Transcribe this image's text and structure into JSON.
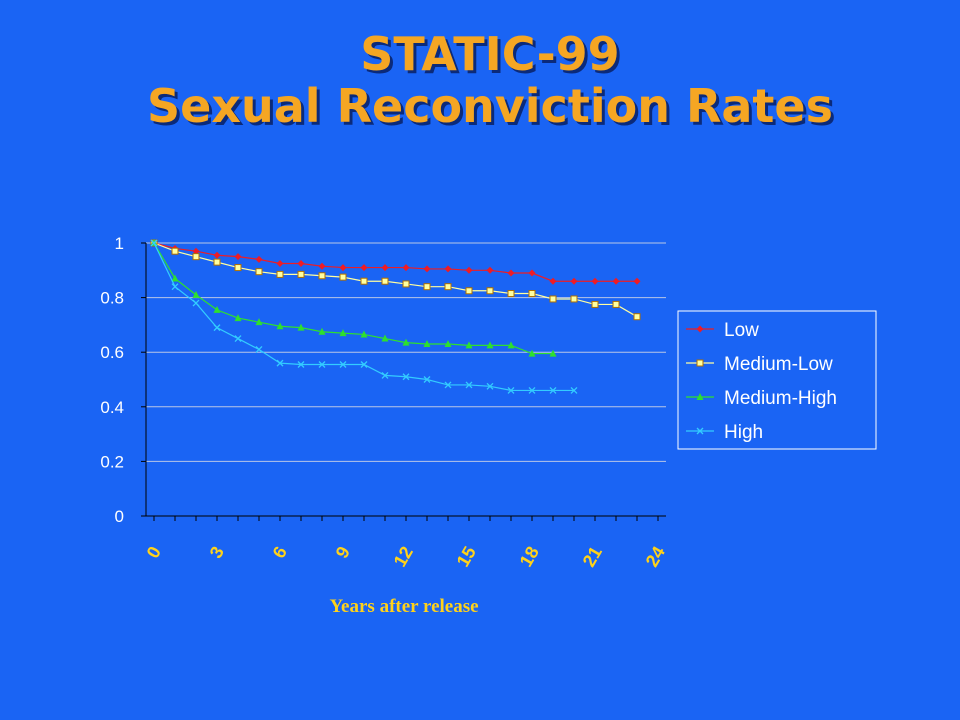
{
  "title": {
    "line1": "STATIC-99",
    "line2": "Sexual Reconviction Rates"
  },
  "colors": {
    "background": "#1a64f4",
    "title": "#f5a623",
    "axis_text": "#ffffff",
    "x_tick_text": "#ffd21a",
    "gridline": "#b9c7e6",
    "legend_border": "#ffffff"
  },
  "chart_data": {
    "type": "line",
    "title": "",
    "xlabel": "Years after release",
    "ylabel": "",
    "xlim": [
      0,
      24
    ],
    "ylim": [
      0,
      1
    ],
    "x_ticks": [
      "0",
      "3",
      "6",
      "9",
      "12",
      "15",
      "18",
      "21",
      "24"
    ],
    "y_ticks": [
      "0",
      "0.2",
      "0.4",
      "0.6",
      "0.8",
      "1"
    ],
    "grid": true,
    "legend_position": "right",
    "series": [
      {
        "name": "Low",
        "color": "#ee1c25",
        "marker": "diamond",
        "x": [
          0,
          1,
          2,
          3,
          4,
          5,
          6,
          7,
          8,
          9,
          10,
          11,
          12,
          13,
          14,
          15,
          16,
          17,
          18,
          19,
          20,
          21,
          22,
          23
        ],
        "y": [
          1,
          0.98,
          0.97,
          0.955,
          0.95,
          0.94,
          0.925,
          0.925,
          0.915,
          0.91,
          0.91,
          0.91,
          0.91,
          0.905,
          0.905,
          0.9,
          0.9,
          0.89,
          0.89,
          0.86,
          0.86,
          0.86,
          0.86,
          0.86
        ]
      },
      {
        "name": "Medium-Low",
        "color": "#ffffa0",
        "marker": "square",
        "x": [
          0,
          1,
          2,
          3,
          4,
          5,
          6,
          7,
          8,
          9,
          10,
          11,
          12,
          13,
          14,
          15,
          16,
          17,
          18,
          19,
          20,
          21,
          22,
          23
        ],
        "y": [
          1,
          0.97,
          0.95,
          0.93,
          0.91,
          0.895,
          0.885,
          0.885,
          0.88,
          0.875,
          0.86,
          0.86,
          0.85,
          0.84,
          0.84,
          0.825,
          0.825,
          0.815,
          0.815,
          0.795,
          0.795,
          0.775,
          0.775,
          0.73
        ]
      },
      {
        "name": "Medium-High",
        "color": "#2ee02e",
        "marker": "triangle",
        "x": [
          0,
          1,
          2,
          3,
          4,
          5,
          6,
          7,
          8,
          9,
          10,
          11,
          12,
          13,
          14,
          15,
          16,
          17,
          18,
          19
        ],
        "y": [
          1,
          0.87,
          0.81,
          0.755,
          0.725,
          0.71,
          0.695,
          0.69,
          0.675,
          0.67,
          0.665,
          0.65,
          0.635,
          0.63,
          0.63,
          0.625,
          0.625,
          0.625,
          0.595,
          0.595
        ]
      },
      {
        "name": "High",
        "color": "#33ccff",
        "marker": "x",
        "x": [
          0,
          1,
          2,
          3,
          4,
          5,
          6,
          7,
          8,
          9,
          10,
          11,
          12,
          13,
          14,
          15,
          16,
          17,
          18,
          19,
          20
        ],
        "y": [
          1,
          0.84,
          0.78,
          0.69,
          0.65,
          0.61,
          0.56,
          0.555,
          0.555,
          0.555,
          0.555,
          0.515,
          0.51,
          0.5,
          0.48,
          0.48,
          0.475,
          0.46,
          0.46,
          0.46,
          0.46
        ]
      }
    ]
  }
}
